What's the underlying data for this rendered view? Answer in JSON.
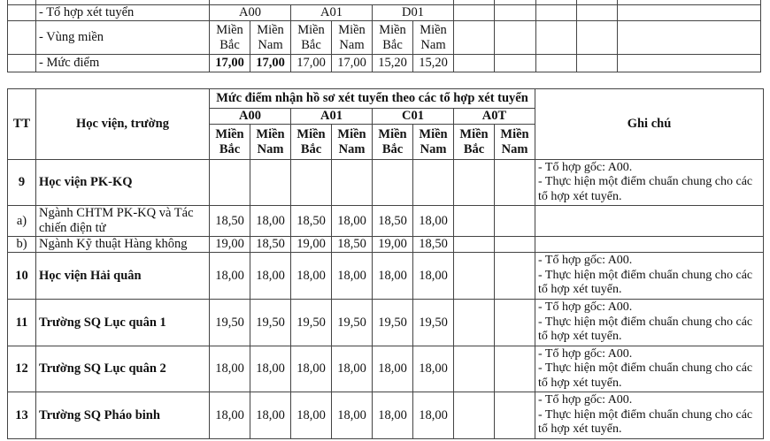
{
  "top_table": {
    "combo_label": "- Tổ hợp xét tuyển",
    "combos": [
      "A00",
      "A01",
      "D01"
    ],
    "region_label": "- Vùng miền",
    "regions": [
      "Miền Bắc",
      "Miền Nam",
      "Miền Bắc",
      "Miền Nam",
      "Miền Bắc",
      "Miền Nam"
    ],
    "score_label": "- Mức điểm",
    "scores": [
      "17,00",
      "17,00",
      "17,00",
      "17,00",
      "15,20",
      "15,20"
    ]
  },
  "main_table": {
    "headers": {
      "tt": "TT",
      "school": "Học viện, trường",
      "group": "Mức điểm nhận hồ sơ xét tuyển theo các tổ hợp xét tuyển",
      "note": "Ghi chú",
      "combos": [
        "A00",
        "A01",
        "C01",
        "A0T"
      ],
      "north": "Miền Bắc",
      "south": "Miền Nam"
    },
    "rows": [
      {
        "tt": "9",
        "name": "Học viện PK-KQ",
        "bold": true,
        "scores": [
          "",
          "",
          "",
          "",
          "",
          "",
          "",
          ""
        ],
        "note": [
          "- Tổ hợp gốc: A00.",
          "- Thực hiện một điểm chuẩn chung cho các tổ hợp xét tuyển."
        ]
      },
      {
        "tt": "a)",
        "name": "Ngành CHTM PK-KQ và Tác chiến điện tử",
        "bold": false,
        "scores": [
          "18,50",
          "18,00",
          "18,50",
          "18,00",
          "18,50",
          "18,00",
          "",
          ""
        ],
        "note": []
      },
      {
        "tt": "b)",
        "name": "Ngành Kỹ thuật Hàng không",
        "bold": false,
        "scores": [
          "19,00",
          "18,50",
          "19,00",
          "18,50",
          "19,00",
          "18,50",
          "",
          ""
        ],
        "note": []
      },
      {
        "tt": "10",
        "name": "Học viện Hải quân",
        "bold": true,
        "scores": [
          "18,00",
          "18,00",
          "18,00",
          "18,00",
          "18,00",
          "18,00",
          "",
          ""
        ],
        "note": [
          "- Tổ hợp gốc: A00.",
          "- Thực hiện một điểm chuẩn chung cho các tổ hợp xét tuyển."
        ]
      },
      {
        "tt": "11",
        "name": "Trường SQ Lục quân 1",
        "bold": true,
        "scores": [
          "19,50",
          "19,50",
          "19,50",
          "19,50",
          "19,50",
          "19,50",
          "",
          ""
        ],
        "note": [
          "- Tổ hợp gốc: A00.",
          "- Thực hiện một điểm chuẩn chung cho các tổ hợp xét tuyển."
        ]
      },
      {
        "tt": "12",
        "name": "Trường SQ Lục quân 2",
        "bold": true,
        "scores": [
          "18,00",
          "18,00",
          "18,00",
          "18,00",
          "18,00",
          "18,00",
          "",
          ""
        ],
        "note": [
          "- Tổ hợp gốc: A00.",
          "- Thực hiện một điểm chuẩn chung cho các tổ hợp xét tuyển."
        ]
      },
      {
        "tt": "13",
        "name": "Trường SQ Pháo binh",
        "bold": true,
        "scores": [
          "18,00",
          "18,00",
          "18,00",
          "18,00",
          "18,00",
          "18,00",
          "",
          ""
        ],
        "note": [
          "- Tổ hợp gốc: A00.",
          "- Thực hiện một điểm chuẩn chung cho các tổ hợp xét tuyển."
        ]
      }
    ]
  }
}
